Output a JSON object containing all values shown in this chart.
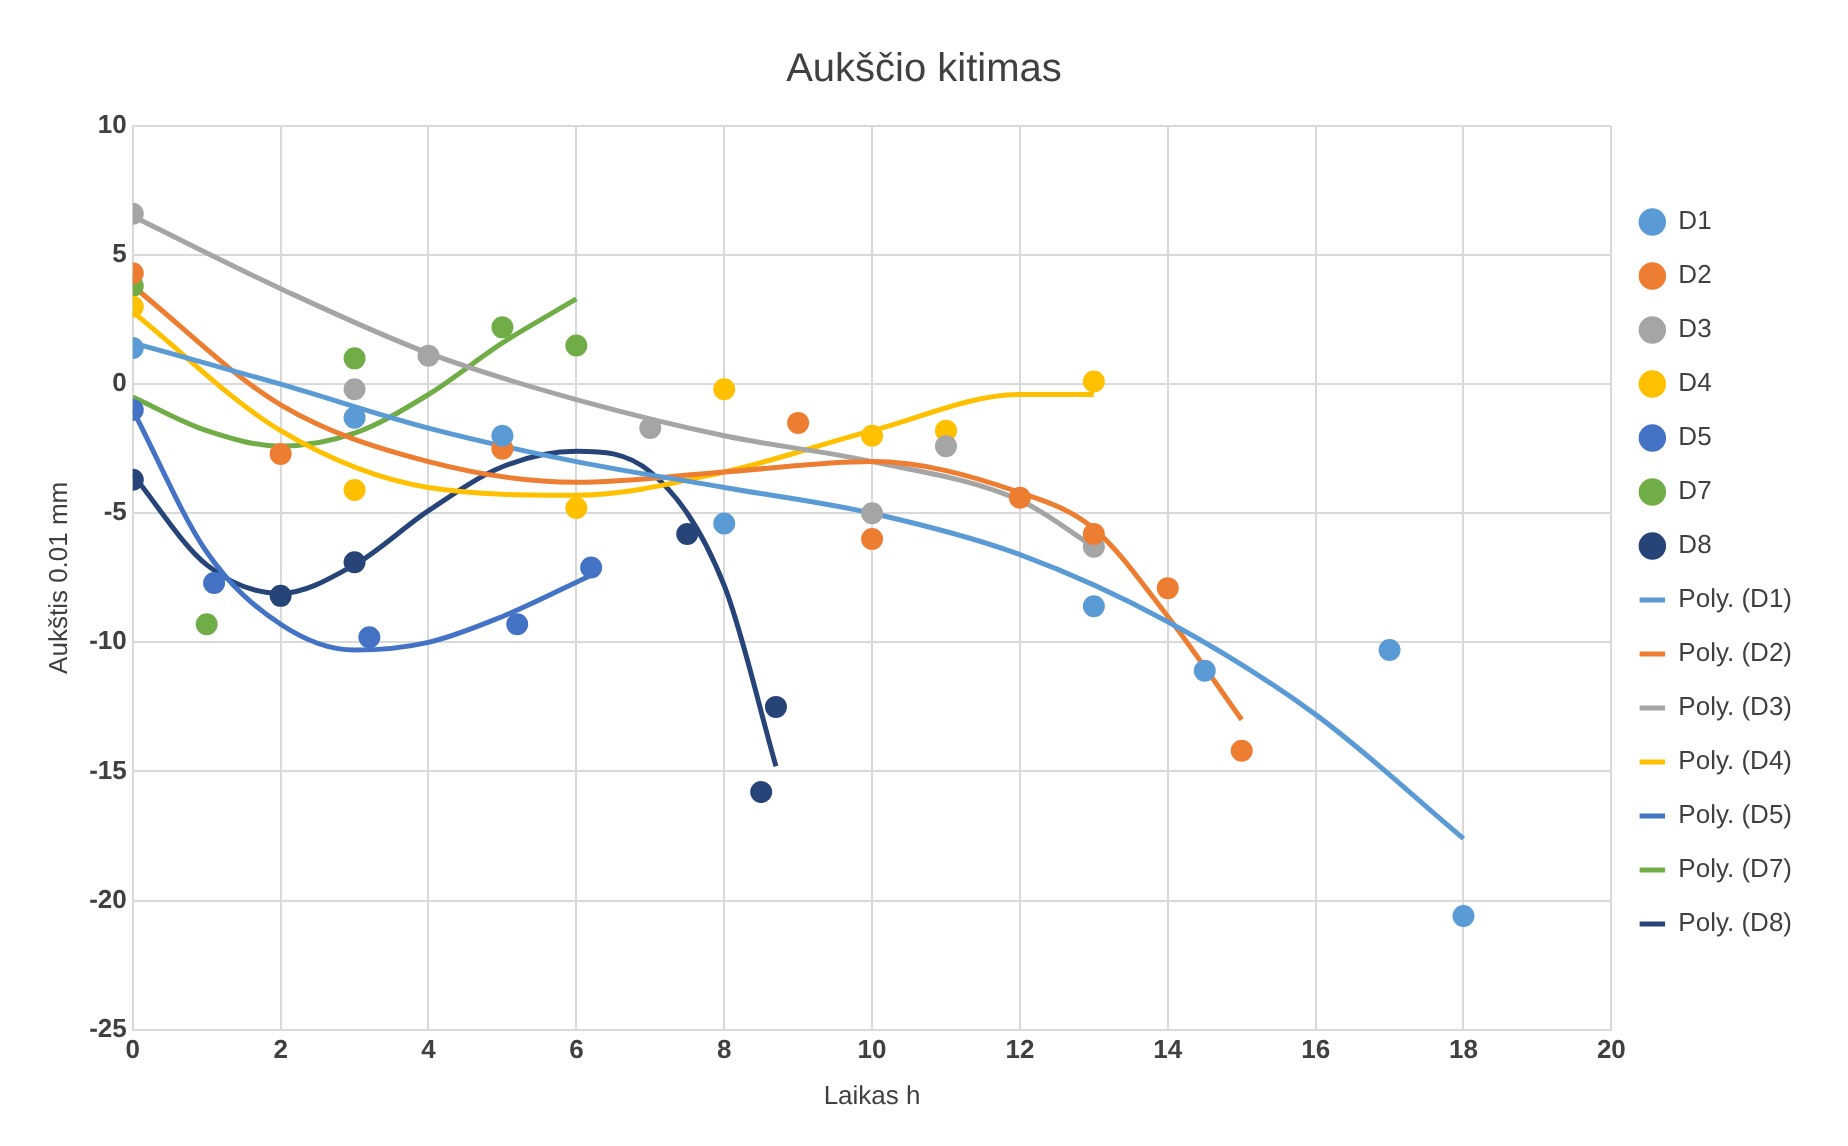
{
  "chart_data": {
    "type": "scatter",
    "title": "Aukščio kitimas",
    "xlabel": "Laikas h",
    "ylabel": "Aukštis 0.01 mm",
    "xlim": [
      0,
      20
    ],
    "xticks": [
      0,
      2,
      4,
      6,
      8,
      10,
      12,
      14,
      16,
      18,
      20
    ],
    "ylim": [
      -25,
      10
    ],
    "yticks": [
      -25,
      -20,
      -15,
      -10,
      -5,
      0,
      5,
      10
    ],
    "grid": true,
    "legend": "right",
    "series": [
      {
        "name": "D1",
        "color": "#5b9bd5",
        "type": "scatter",
        "marker": "circle",
        "x": [
          0,
          3,
          5,
          8,
          13,
          14.5,
          17,
          18
        ],
        "values": [
          1.4,
          -1.3,
          -2,
          -5.4,
          -8.6,
          -11.1,
          -10.3,
          -20.6
        ]
      },
      {
        "name": "D2",
        "color": "#ed7d31",
        "type": "scatter",
        "marker": "circle",
        "x": [
          0,
          2,
          5,
          9,
          10,
          12,
          13,
          14,
          15
        ],
        "values": [
          4.3,
          -2.7,
          -2.5,
          -1.5,
          -6,
          -4.4,
          -5.8,
          -7.9,
          -14.2
        ]
      },
      {
        "name": "D3",
        "color": "#a5a5a5",
        "type": "scatter",
        "marker": "circle",
        "x": [
          0,
          3,
          4,
          7,
          10,
          11,
          13
        ],
        "values": [
          6.6,
          -0.2,
          1.1,
          -1.7,
          -5,
          -2.4,
          -6.3
        ]
      },
      {
        "name": "D4",
        "color": "#ffc000",
        "type": "scatter",
        "marker": "circle",
        "x": [
          0,
          3,
          6,
          8,
          10,
          11,
          13
        ],
        "values": [
          3,
          -4.1,
          -4.8,
          -0.2,
          -2,
          -1.8,
          0.1
        ]
      },
      {
        "name": "D5",
        "color": "#4472c4",
        "type": "scatter",
        "marker": "circle",
        "x": [
          0,
          1.1,
          3.2,
          5.2,
          6.2
        ],
        "values": [
          -1,
          -7.7,
          -9.8,
          -9.3,
          -7.1
        ]
      },
      {
        "name": "D7",
        "color": "#70ad47",
        "type": "scatter",
        "marker": "circle",
        "x": [
          0,
          1,
          3,
          5,
          6
        ],
        "values": [
          3.8,
          -9.3,
          1,
          2.2,
          1.5
        ]
      },
      {
        "name": "D8",
        "color": "#264478",
        "type": "scatter",
        "marker": "circle",
        "x": [
          0,
          2,
          3,
          7.5,
          8.5,
          8.7
        ],
        "values": [
          -3.7,
          -8.2,
          -6.9,
          -5.8,
          -15.8,
          -12.5
        ]
      },
      {
        "name": "Poly. (D1)",
        "color": "#5b9bd5",
        "type": "line",
        "marker": "none",
        "x": [
          0,
          2,
          4,
          6,
          8,
          10,
          12,
          14,
          16,
          18
        ],
        "values": [
          1.6,
          0,
          -1.7,
          -3,
          -4,
          -5,
          -6.6,
          -9.2,
          -12.8,
          -17.6
        ]
      },
      {
        "name": "Poly. (D2)",
        "color": "#ed7d31",
        "type": "line",
        "marker": "none",
        "x": [
          0,
          2,
          4,
          6,
          8,
          10,
          12,
          13,
          14,
          15
        ],
        "values": [
          3.8,
          -0.8,
          -3,
          -3.8,
          -3.4,
          -3,
          -4.2,
          -5.6,
          -9,
          -13
        ]
      },
      {
        "name": "Poly. (D3)",
        "color": "#a5a5a5",
        "type": "line",
        "marker": "none",
        "x": [
          0,
          2,
          4,
          6,
          8,
          10,
          12,
          13
        ],
        "values": [
          6.5,
          3.7,
          1.2,
          -0.6,
          -2,
          -3,
          -4.5,
          -6.3
        ]
      },
      {
        "name": "Poly. (D4)",
        "color": "#ffc000",
        "type": "line",
        "marker": "none",
        "x": [
          0,
          2,
          4,
          6,
          8,
          10,
          12,
          13
        ],
        "values": [
          2.8,
          -1.8,
          -4,
          -4.3,
          -3.4,
          -1.8,
          -0.4,
          -0.4
        ]
      },
      {
        "name": "Poly. (D5)",
        "color": "#4472c4",
        "type": "line",
        "marker": "none",
        "x": [
          0,
          1,
          2,
          3,
          4,
          5,
          6.2
        ],
        "values": [
          -1,
          -6.5,
          -9.3,
          -10.3,
          -10,
          -9,
          -7.4
        ]
      },
      {
        "name": "Poly. (D7)",
        "color": "#70ad47",
        "type": "line",
        "marker": "none",
        "x": [
          0,
          1,
          2,
          3,
          4,
          5,
          6
        ],
        "values": [
          -0.5,
          -1.8,
          -2.4,
          -1.9,
          -0.4,
          1.6,
          3.3
        ]
      },
      {
        "name": "Poly. (D8)",
        "color": "#264478",
        "type": "line",
        "marker": "none",
        "x": [
          0,
          1,
          2,
          3,
          4,
          5,
          6,
          7,
          8,
          8.7
        ],
        "values": [
          -3.5,
          -7,
          -8.1,
          -7,
          -4.9,
          -3.2,
          -2.6,
          -3.4,
          -7.8,
          -14.8
        ]
      }
    ]
  }
}
